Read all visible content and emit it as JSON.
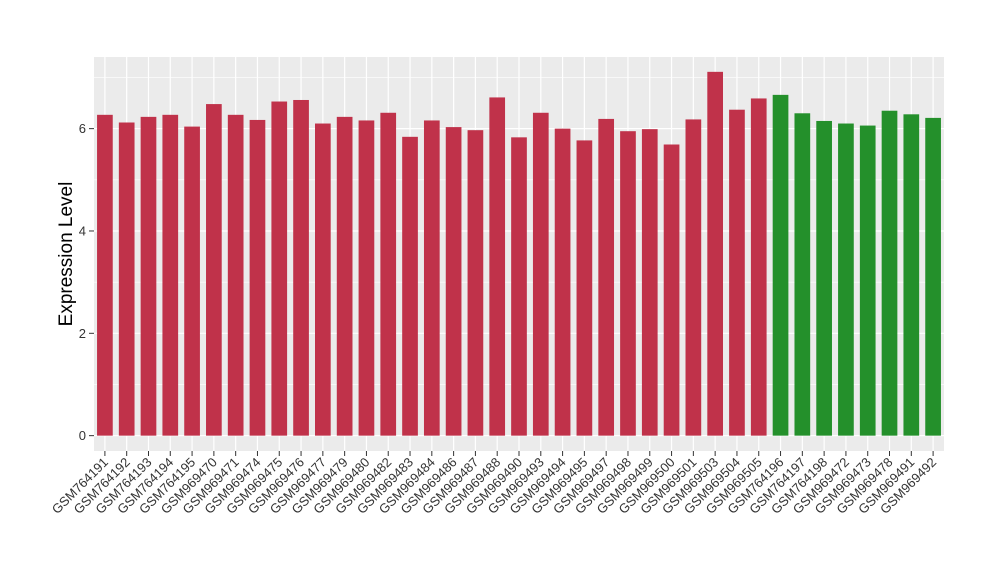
{
  "chart_data": {
    "type": "bar",
    "ylabel": "Expression Level",
    "xlabel": "",
    "ylim": [
      -0.3,
      7.4
    ],
    "yticks": [
      0,
      2,
      4,
      6
    ],
    "grid": true,
    "legend": "none",
    "colors": {
      "group_1": "#c0324a",
      "group_2": "#24902b",
      "panel_background": "#ebebeb",
      "grid": "#ffffff"
    },
    "categories": [
      "GSM764191",
      "GSM764192",
      "GSM764193",
      "GSM764194",
      "GSM764195",
      "GSM969470",
      "GSM969471",
      "GSM969474",
      "GSM969475",
      "GSM969476",
      "GSM969477",
      "GSM969479",
      "GSM969480",
      "GSM969482",
      "GSM969483",
      "GSM969484",
      "GSM969486",
      "GSM969487",
      "GSM969488",
      "GSM969490",
      "GSM969493",
      "GSM969494",
      "GSM969495",
      "GSM969497",
      "GSM969498",
      "GSM969499",
      "GSM969500",
      "GSM969501",
      "GSM969503",
      "GSM969504",
      "GSM969505",
      "GSM764196",
      "GSM764197",
      "GSM764198",
      "GSM969472",
      "GSM969473",
      "GSM969478",
      "GSM969491",
      "GSM969492"
    ],
    "values": [
      6.27,
      6.12,
      6.23,
      6.27,
      6.04,
      6.48,
      6.27,
      6.17,
      6.53,
      6.56,
      6.1,
      6.23,
      6.16,
      6.31,
      5.84,
      6.16,
      6.03,
      5.97,
      6.61,
      5.83,
      6.31,
      6.0,
      5.77,
      6.19,
      5.95,
      5.99,
      5.69,
      6.18,
      7.11,
      6.37,
      6.59,
      6.66,
      6.3,
      6.15,
      6.1,
      6.06,
      6.35,
      6.28,
      6.21
    ],
    "groups": [
      1,
      1,
      1,
      1,
      1,
      1,
      1,
      1,
      1,
      1,
      1,
      1,
      1,
      1,
      1,
      1,
      1,
      1,
      1,
      1,
      1,
      1,
      1,
      1,
      1,
      1,
      1,
      1,
      1,
      1,
      1,
      2,
      2,
      2,
      2,
      2,
      2,
      2,
      2
    ]
  }
}
